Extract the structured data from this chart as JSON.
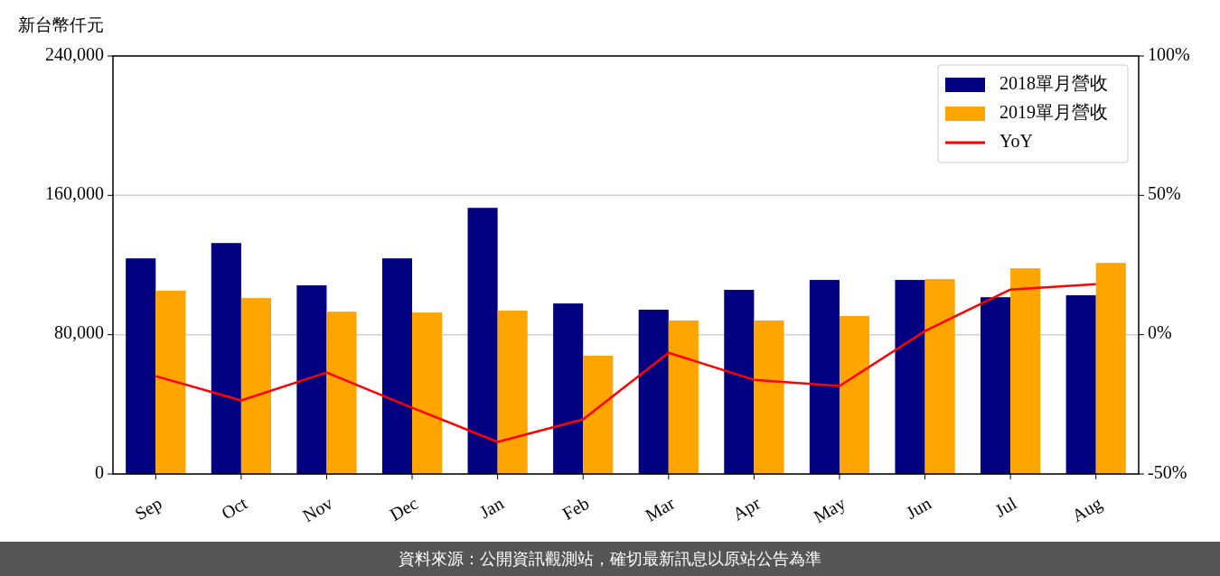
{
  "chart_data": {
    "type": "bar",
    "ylabel": "新台幣仟元",
    "categories": [
      "Sep",
      "Oct",
      "Nov",
      "Dec",
      "Jan",
      "Feb",
      "Mar",
      "Apr",
      "May",
      "Jun",
      "Jul",
      "Aug"
    ],
    "series": [
      {
        "name": "2018單月營收",
        "color": "#000080",
        "values": [
          123800,
          132600,
          108300,
          123800,
          152800,
          97900,
          94300,
          105700,
          111400,
          111400,
          101500,
          102600
        ]
      },
      {
        "name": "2019單月營收",
        "color": "#ffa500",
        "values": [
          105200,
          101000,
          93200,
          92700,
          93800,
          67900,
          88100,
          88100,
          90700,
          111900,
          118100,
          121200
        ]
      },
      {
        "name": "YoY",
        "type": "line",
        "axis": "y2",
        "color": "#ff0000",
        "values": [
          -14.9,
          -23.6,
          -13.6,
          -26.2,
          -38.5,
          -30.4,
          -6.5,
          -16.2,
          -18.4,
          1.3,
          16.2,
          18.1
        ]
      }
    ],
    "ylim": [
      0,
      240000
    ],
    "yticks": [
      0,
      {
        "value": 80000,
        "label": "80,000"
      },
      {
        "value": 160000,
        "label": "160,000"
      },
      {
        "value": 240000,
        "label": "240,000"
      }
    ],
    "y2lim": [
      -50,
      100
    ],
    "y2ticks": [
      {
        "value": -50,
        "label": "-50%"
      },
      {
        "value": 0,
        "label": "0%"
      },
      {
        "value": 50,
        "label": "50%"
      },
      {
        "value": 100,
        "label": "100%"
      }
    ],
    "grid": "y",
    "legend": "top right",
    "annotations": [
      "資料來源：公開資訊觀測站，確切最新訊息以原站公告為準"
    ]
  }
}
